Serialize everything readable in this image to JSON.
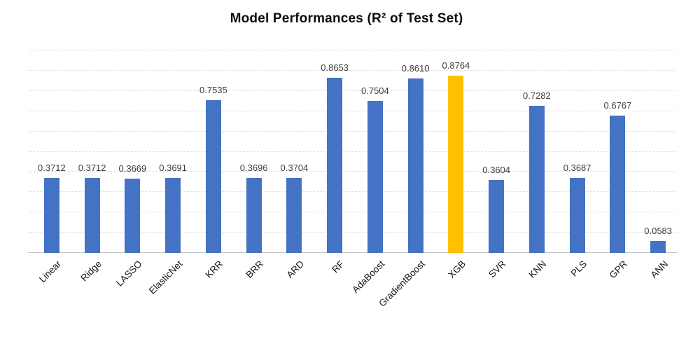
{
  "title": "Model Performances (R² of Test Set)",
  "chart_data": {
    "type": "bar",
    "title": "Model Performances (R² of Test Set)",
    "categories": [
      "Linear",
      "Ridge",
      "LASSO",
      "ElasticNet",
      "KRR",
      "BRR",
      "ARD",
      "RF",
      "AdaBoost",
      "GradientBoost",
      "XGB",
      "SVR",
      "KNN",
      "PLS",
      "GPR",
      "ANN"
    ],
    "values": [
      0.3712,
      0.3712,
      0.3669,
      0.3691,
      0.7535,
      0.3696,
      0.3704,
      0.8653,
      0.7504,
      0.861,
      0.8764,
      0.3604,
      0.7282,
      0.3687,
      0.6767,
      0.0583
    ],
    "value_label_decimals": 4,
    "highlight_category": "XGB",
    "bar_color": "#4472C4",
    "highlight_color": "#FFC000",
    "xlabel": "",
    "ylabel": "",
    "ylim": [
      0,
      1.0
    ],
    "gridline_step": 0.1,
    "grid": true,
    "legend": false,
    "x_tick_rotation": 45,
    "value_labels_shown": true
  }
}
